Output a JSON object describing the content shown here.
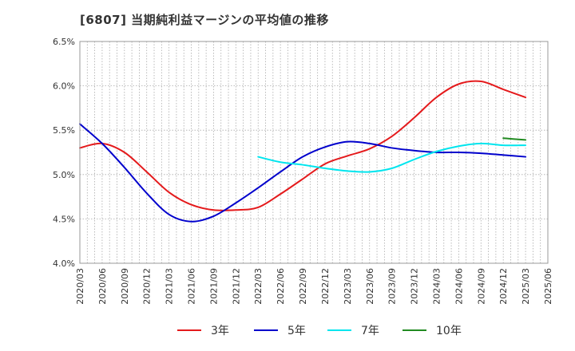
{
  "chart_data": {
    "type": "line",
    "title": "[6807]  当期純利益マージンの平均値の推移",
    "xlabel": "",
    "ylabel": "",
    "ylim": [
      4.0,
      6.5
    ],
    "y_ticks": [
      "4.0%",
      "4.5%",
      "5.0%",
      "5.5%",
      "6.0%",
      "6.5%"
    ],
    "y_tick_values": [
      4.0,
      4.5,
      5.0,
      5.5,
      6.0,
      6.5
    ],
    "x_tick_labels": [
      "2020/03",
      "2020/06",
      "2020/09",
      "2020/12",
      "2021/03",
      "2021/06",
      "2021/09",
      "2021/12",
      "2022/03",
      "2022/06",
      "2022/09",
      "2022/12",
      "2023/03",
      "2023/06",
      "2023/09",
      "2023/12",
      "2024/03",
      "2024/06",
      "2024/09",
      "2024/12",
      "2025/03",
      "2025/06"
    ],
    "grid": true,
    "legend_position": "bottom",
    "series": [
      {
        "name": "3年",
        "color": "#e41a1c",
        "points": [
          [
            "2020/03",
            5.3
          ],
          [
            "2020/06",
            5.35
          ],
          [
            "2020/09",
            5.25
          ],
          [
            "2020/12",
            5.03
          ],
          [
            "2021/03",
            4.8
          ],
          [
            "2021/06",
            4.66
          ],
          [
            "2021/09",
            4.6
          ],
          [
            "2021/12",
            4.6
          ],
          [
            "2022/03",
            4.63
          ],
          [
            "2022/06",
            4.78
          ],
          [
            "2022/09",
            4.95
          ],
          [
            "2022/12",
            5.12
          ],
          [
            "2023/03",
            5.21
          ],
          [
            "2023/06",
            5.29
          ],
          [
            "2023/09",
            5.43
          ],
          [
            "2023/12",
            5.64
          ],
          [
            "2024/03",
            5.87
          ],
          [
            "2024/06",
            6.02
          ],
          [
            "2024/09",
            6.05
          ],
          [
            "2024/12",
            5.96
          ],
          [
            "2025/03",
            5.87
          ]
        ]
      },
      {
        "name": "5年",
        "color": "#0000cc",
        "points": [
          [
            "2020/03",
            5.57
          ],
          [
            "2020/06",
            5.35
          ],
          [
            "2020/09",
            5.08
          ],
          [
            "2020/12",
            4.79
          ],
          [
            "2021/03",
            4.55
          ],
          [
            "2021/06",
            4.47
          ],
          [
            "2021/09",
            4.53
          ],
          [
            "2021/12",
            4.68
          ],
          [
            "2022/03",
            4.85
          ],
          [
            "2022/06",
            5.03
          ],
          [
            "2022/09",
            5.2
          ],
          [
            "2022/12",
            5.31
          ],
          [
            "2023/03",
            5.37
          ],
          [
            "2023/06",
            5.35
          ],
          [
            "2023/09",
            5.3
          ],
          [
            "2023/12",
            5.27
          ],
          [
            "2024/03",
            5.25
          ],
          [
            "2024/06",
            5.25
          ],
          [
            "2024/09",
            5.24
          ],
          [
            "2024/12",
            5.22
          ],
          [
            "2025/03",
            5.2
          ]
        ]
      },
      {
        "name": "7年",
        "color": "#00e5ee",
        "points": [
          [
            "2022/03",
            5.2
          ],
          [
            "2022/06",
            5.14
          ],
          [
            "2022/09",
            5.11
          ],
          [
            "2022/12",
            5.07
          ],
          [
            "2023/03",
            5.04
          ],
          [
            "2023/06",
            5.03
          ],
          [
            "2023/09",
            5.07
          ],
          [
            "2023/12",
            5.17
          ],
          [
            "2024/03",
            5.26
          ],
          [
            "2024/06",
            5.32
          ],
          [
            "2024/09",
            5.35
          ],
          [
            "2024/12",
            5.33
          ],
          [
            "2025/03",
            5.33
          ]
        ]
      },
      {
        "name": "10年",
        "color": "#228b22",
        "points": [
          [
            "2024/12",
            5.41
          ],
          [
            "2025/03",
            5.39
          ]
        ]
      }
    ]
  }
}
